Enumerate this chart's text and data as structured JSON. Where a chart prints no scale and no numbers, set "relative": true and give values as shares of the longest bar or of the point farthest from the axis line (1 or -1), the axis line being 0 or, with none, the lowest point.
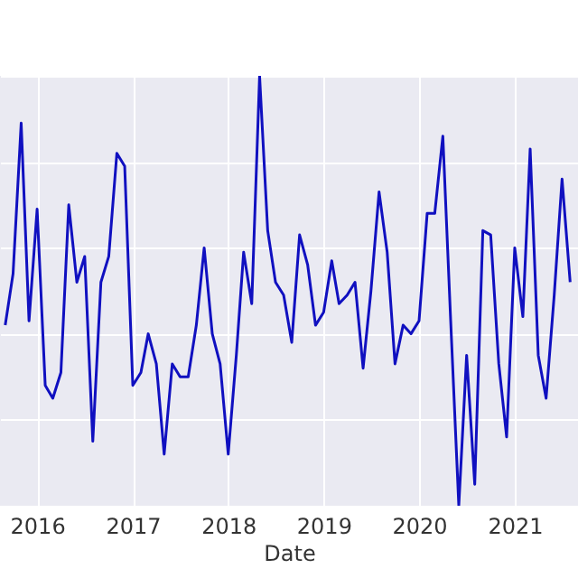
{
  "chart_data": {
    "type": "line",
    "xlabel": "Date",
    "relative": true,
    "grid": true,
    "legend": false,
    "xlim": [
      "2015-08-12",
      "2021-08-31"
    ],
    "xticks": [
      {
        "value": "2016-01-01",
        "label": "2016"
      },
      {
        "value": "2017-01-01",
        "label": "2017"
      },
      {
        "value": "2018-01-01",
        "label": "2018"
      },
      {
        "value": "2019-01-01",
        "label": "2019"
      },
      {
        "value": "2020-01-01",
        "label": "2020"
      },
      {
        "value": "2021-01-01",
        "label": "2021"
      }
    ],
    "x": [
      "2015-09",
      "2015-10",
      "2015-11",
      "2015-12",
      "2016-01",
      "2016-02",
      "2016-03",
      "2016-04",
      "2016-05",
      "2016-06",
      "2016-07",
      "2016-08",
      "2016-09",
      "2016-10",
      "2016-11",
      "2016-12",
      "2017-01",
      "2017-02",
      "2017-03",
      "2017-04",
      "2017-05",
      "2017-06",
      "2017-07",
      "2017-08",
      "2017-09",
      "2017-10",
      "2017-11",
      "2017-12",
      "2018-01",
      "2018-02",
      "2018-03",
      "2018-04",
      "2018-05",
      "2018-06",
      "2018-07",
      "2018-08",
      "2018-09",
      "2018-10",
      "2018-11",
      "2018-12",
      "2019-01",
      "2019-02",
      "2019-03",
      "2019-04",
      "2019-05",
      "2019-06",
      "2019-07",
      "2019-08",
      "2019-09",
      "2019-10",
      "2019-11",
      "2019-12",
      "2020-01",
      "2020-02",
      "2020-03",
      "2020-04",
      "2020-05",
      "2020-06",
      "2020-07",
      "2020-08",
      "2020-09",
      "2020-10",
      "2020-11",
      "2020-12",
      "2021-01",
      "2021-02",
      "2021-03",
      "2021-04",
      "2021-05",
      "2021-06",
      "2021-07",
      "2021-08"
    ],
    "series": [
      {
        "color": "#1010c0",
        "values": [
          0.42,
          0.54,
          0.89,
          0.43,
          0.69,
          0.28,
          0.25,
          0.31,
          0.7,
          0.52,
          0.58,
          0.15,
          0.52,
          0.58,
          0.82,
          0.79,
          0.28,
          0.31,
          0.4,
          0.33,
          0.12,
          0.33,
          0.3,
          0.3,
          0.42,
          0.6,
          0.4,
          0.33,
          0.12,
          0.35,
          0.59,
          0.47,
          1,
          0.64,
          0.52,
          0.49,
          0.38,
          0.63,
          0.56,
          0.42,
          0.45,
          0.57,
          0.47,
          0.49,
          0.52,
          0.32,
          0.5,
          0.73,
          0.59,
          0.33,
          0.42,
          0.4,
          0.43,
          0.68,
          0.68,
          0.86,
          0.43,
          0,
          0.35,
          0.05,
          0.64,
          0.63,
          0.33,
          0.16,
          0.6,
          0.44,
          0.83,
          0.35,
          0.25,
          0.49,
          0.76,
          0.52
        ]
      }
    ]
  }
}
